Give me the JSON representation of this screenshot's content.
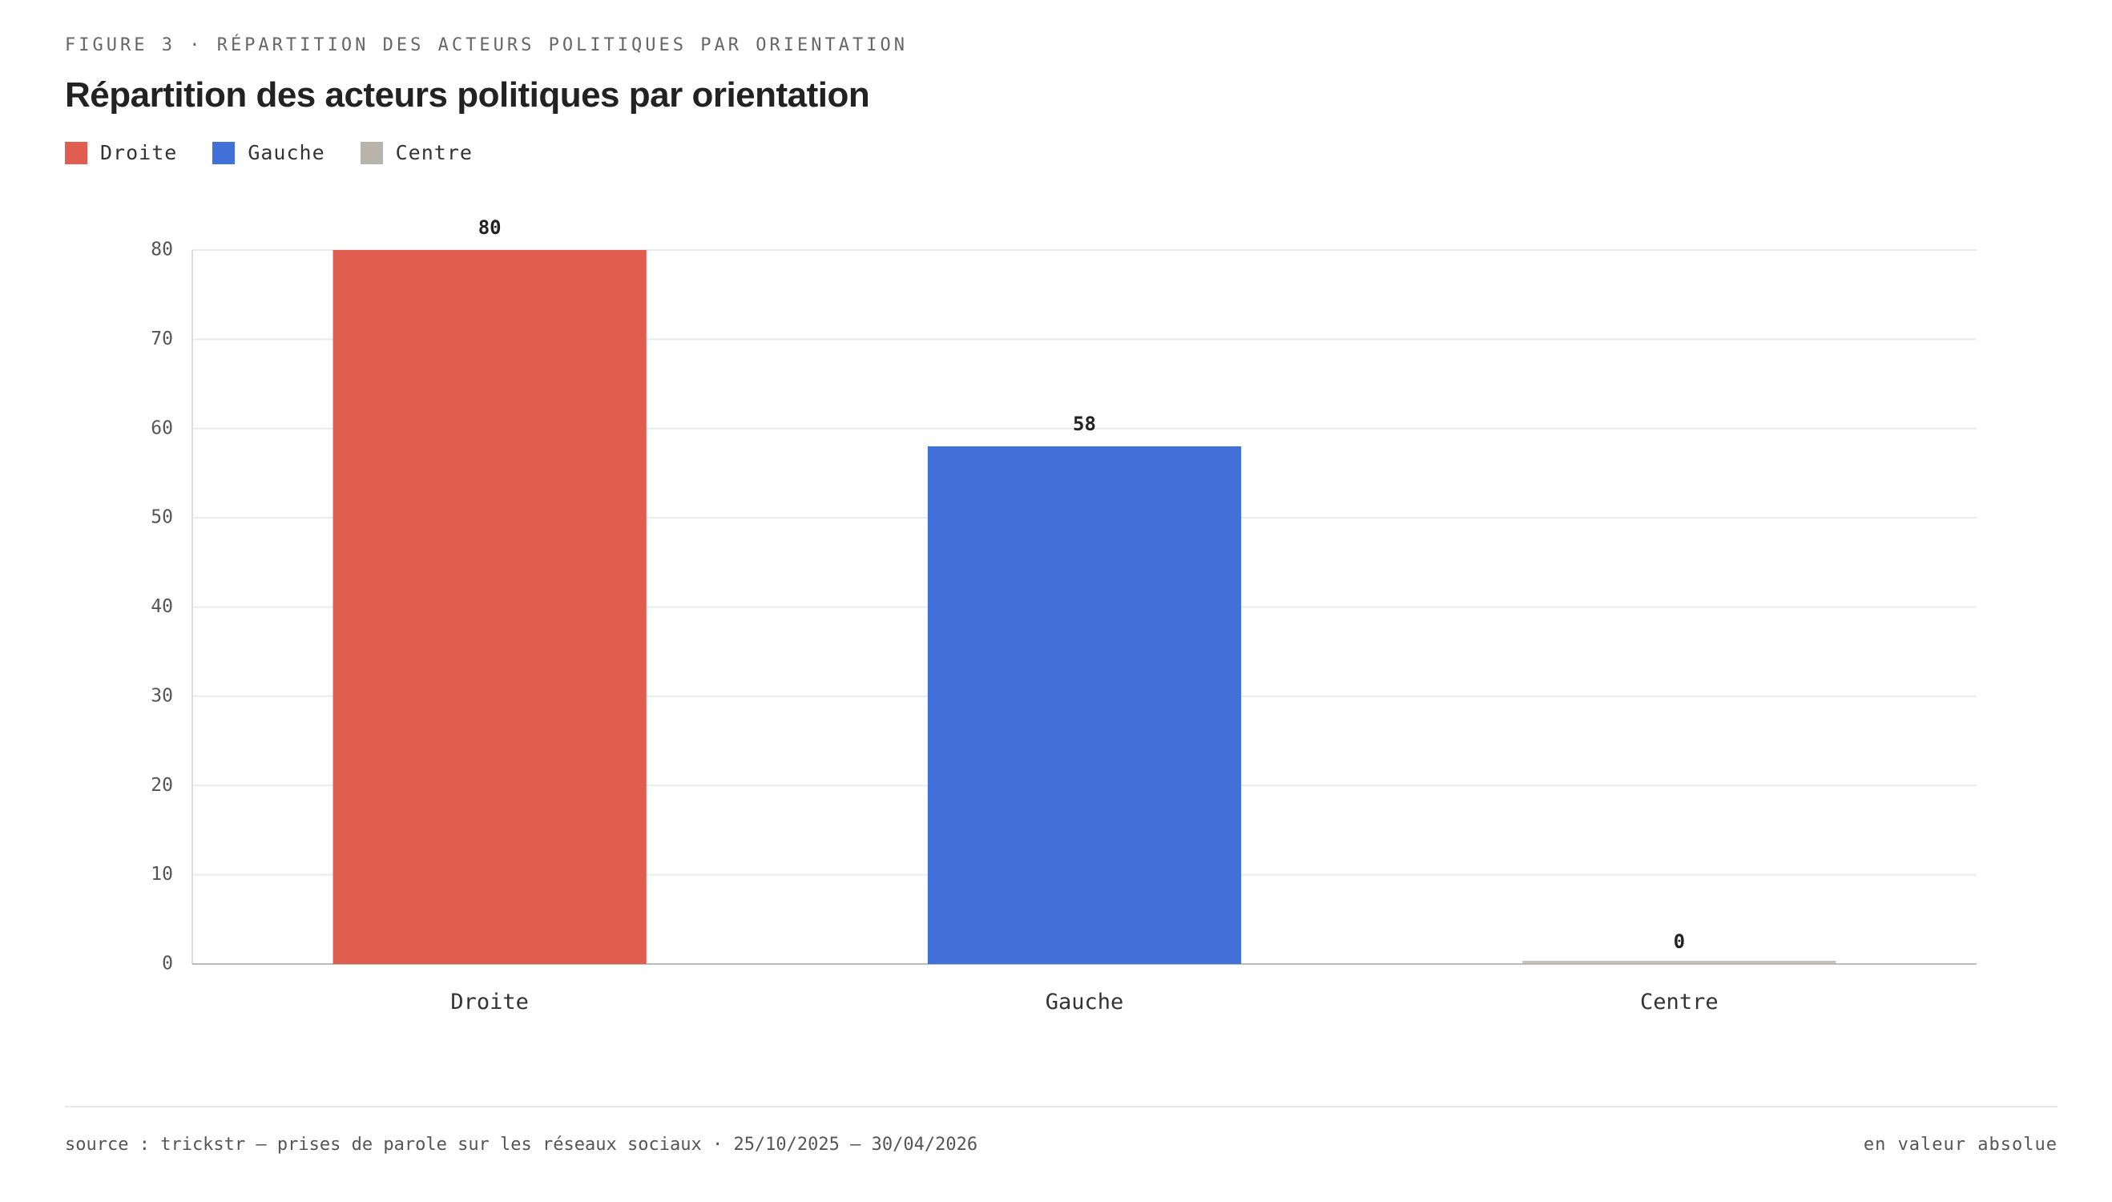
{
  "eyebrow": "FIGURE 3 · RÉPARTITION DES ACTEURS POLITIQUES PAR ORIENTATION",
  "footer": {
    "source": "source : trickstr — prises de parole sur les réseaux sociaux · 25/10/2025 — 30/04/2026",
    "unit_note": "en valeur absolue"
  },
  "legend": [
    {
      "label": "Droite",
      "color": "#E05E50"
    },
    {
      "label": "Gauche",
      "color": "#4070D8"
    },
    {
      "label": "Centre",
      "color": "#B8B4AC"
    }
  ],
  "chart_data": {
    "type": "bar",
    "title": "Répartition des acteurs politiques par orientation",
    "categories": [
      "Droite",
      "Gauche",
      "Centre"
    ],
    "values": [
      80,
      58,
      0
    ],
    "colors": [
      "#E05E50",
      "#4070D8",
      "#B8B4AC"
    ],
    "ylim": [
      0,
      80
    ],
    "yticks": [
      0,
      10,
      20,
      30,
      40,
      50,
      60,
      70,
      80
    ],
    "xlabel": "",
    "ylabel": "",
    "grid": true,
    "legend_position": "top-left",
    "data_labels": true
  }
}
